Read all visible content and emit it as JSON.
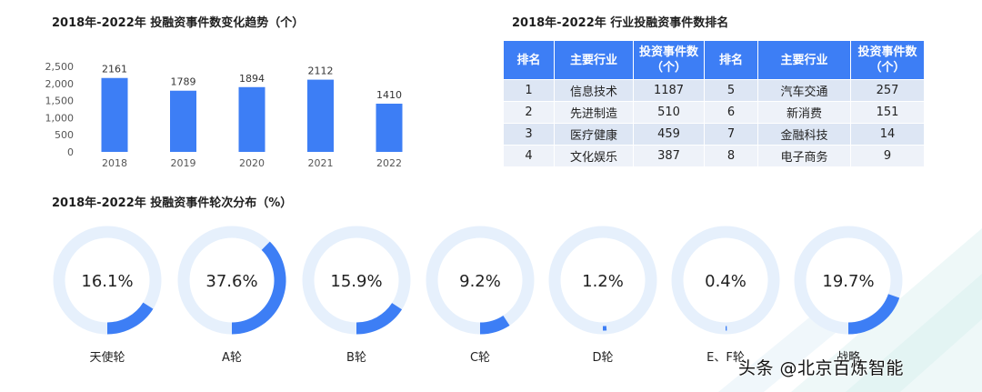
{
  "titles": {
    "bar": "2018年-2022年 投融资事件数变化趋势（个）",
    "rank": "2018年-2022年 行业投融资事件数排名",
    "donut": "2018年-2022年 投融资事件轮次分布（%）"
  },
  "colors": {
    "accent": "#3d7ef5",
    "ring": "#e6f0fc",
    "header": "#3d7ef5",
    "row_odd": "#dde6f4",
    "row_even": "#eef2f9"
  },
  "rank_table": {
    "headers": [
      "排名",
      "主要行业",
      "投资事件数（个）",
      "排名",
      "主要行业",
      "投资事件数（个）"
    ],
    "rows": [
      [
        "1",
        "信息技术",
        "1187",
        "5",
        "汽车交通",
        "257"
      ],
      [
        "2",
        "先进制造",
        "510",
        "6",
        "新消费",
        "151"
      ],
      [
        "3",
        "医疗健康",
        "459",
        "7",
        "金融科技",
        "14"
      ],
      [
        "4",
        "文化娱乐",
        "387",
        "8",
        "电子商务",
        "9"
      ]
    ]
  },
  "watermark": "头条 @北京百炼智能",
  "chart_data": [
    {
      "type": "bar",
      "title": "2018年-2022年 投融资事件数变化趋势（个）",
      "categories": [
        "2018",
        "2019",
        "2020",
        "2021",
        "2022"
      ],
      "values": [
        2161,
        1789,
        1894,
        2112,
        1410
      ],
      "ylim": [
        0,
        2500
      ],
      "yticks": [
        "2,500",
        "2,000",
        "1,500",
        "1,000",
        "500",
        "0"
      ],
      "ytick_values": [
        2500,
        2000,
        1500,
        1000,
        500,
        0
      ],
      "grid": false
    },
    {
      "type": "pie",
      "title": "2018年-2022年 投融资事件轮次分布（%）",
      "categories": [
        "天使轮",
        "A轮",
        "B轮",
        "C轮",
        "D轮",
        "E、F轮",
        "战略"
      ],
      "values": [
        16.1,
        37.6,
        15.9,
        9.2,
        1.2,
        0.4,
        19.7
      ],
      "value_labels": [
        "16.1%",
        "37.6%",
        "15.9%",
        "9.2%",
        "1.2%",
        "0.4%",
        "19.7%"
      ]
    }
  ]
}
